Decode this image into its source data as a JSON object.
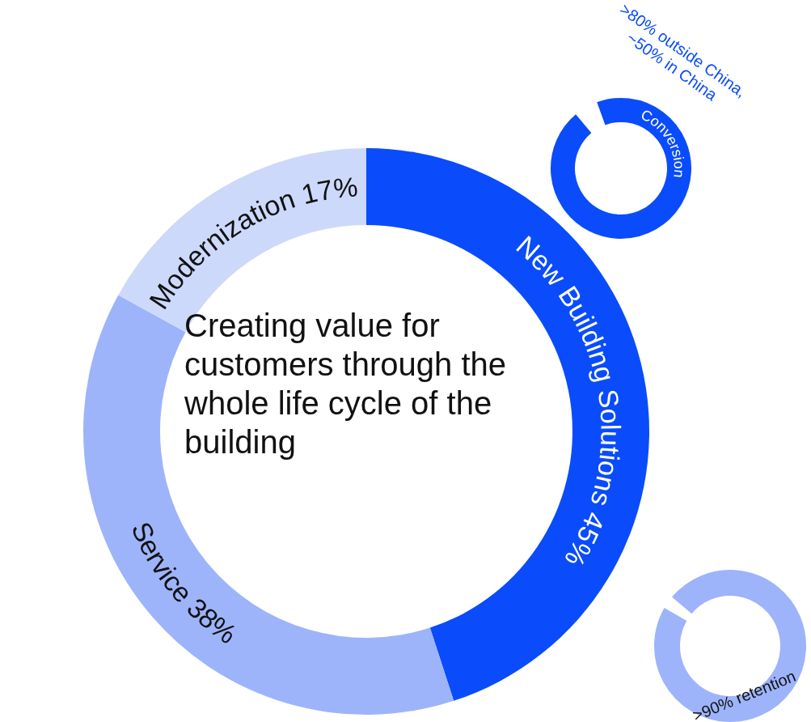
{
  "chart_data": {
    "type": "donut",
    "categories": [
      "New Building Solutions",
      "Service",
      "Modernization"
    ],
    "values": [
      45,
      38,
      17
    ],
    "colors": [
      "#0a4cfb",
      "#9db4fb",
      "#cdd9fb"
    ],
    "value_labels": [
      "45%",
      "38%",
      "17%"
    ],
    "annotations": [
      "Creating value for customers through the whole life cycle of the building",
      "Conversion",
      ">80% outside China, ~50% in China",
      ">90% retention"
    ]
  }
}
